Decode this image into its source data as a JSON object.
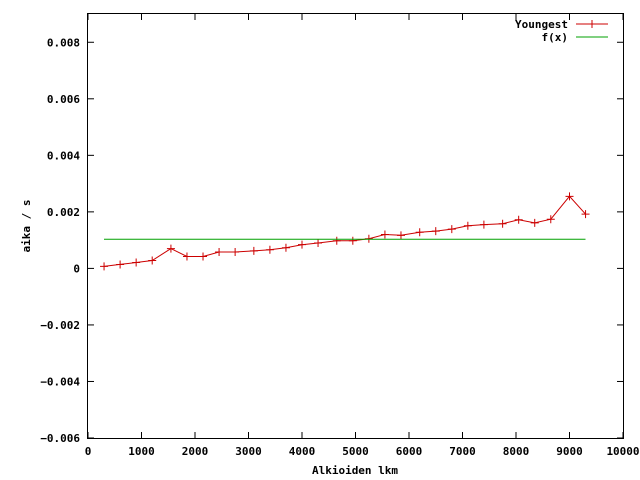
{
  "chart_data": {
    "type": "line",
    "xlabel": "Alkioiden lkm",
    "ylabel": "aika / s",
    "xlim": [
      0,
      10000
    ],
    "ylim": [
      -0.006,
      0.009
    ],
    "x_ticks": [
      {
        "value": 0,
        "label": "0"
      },
      {
        "value": 1000,
        "label": "1000"
      },
      {
        "value": 2000,
        "label": "2000"
      },
      {
        "value": 3000,
        "label": "3000"
      },
      {
        "value": 4000,
        "label": "4000"
      },
      {
        "value": 5000,
        "label": "5000"
      },
      {
        "value": 6000,
        "label": "6000"
      },
      {
        "value": 7000,
        "label": "7000"
      },
      {
        "value": 8000,
        "label": "8000"
      },
      {
        "value": 9000,
        "label": "9000"
      },
      {
        "value": 10000,
        "label": "10000"
      }
    ],
    "y_ticks": [
      {
        "value": -0.006,
        "label": "−0.006"
      },
      {
        "value": -0.004,
        "label": "−0.004"
      },
      {
        "value": -0.002,
        "label": "−0.002"
      },
      {
        "value": 0,
        "label": "0"
      },
      {
        "value": 0.002,
        "label": "0.002"
      },
      {
        "value": 0.004,
        "label": "0.004"
      },
      {
        "value": 0.006,
        "label": "0.006"
      },
      {
        "value": 0.008,
        "label": "0.008"
      }
    ],
    "grid": false,
    "legend": "top-right",
    "series": [
      {
        "name": "Youngest",
        "color": "#cc0000",
        "marker": "plus",
        "x": [
          300,
          600,
          900,
          1200,
          1550,
          1850,
          2150,
          2450,
          2750,
          3100,
          3400,
          3700,
          4000,
          4300,
          4650,
          4950,
          5250,
          5550,
          5850,
          6200,
          6500,
          6800,
          7100,
          7400,
          7750,
          8050,
          8350,
          8650,
          9000,
          9300
        ],
        "y": [
          7e-05,
          0.00014,
          0.00021,
          0.00028,
          0.0007,
          0.00042,
          0.00042,
          0.00058,
          0.00058,
          0.00062,
          0.00066,
          0.00073,
          0.00084,
          0.0009,
          0.00098,
          0.00098,
          0.00105,
          0.0012,
          0.00117,
          0.00128,
          0.00132,
          0.00139,
          0.00151,
          0.00155,
          0.00158,
          0.00172,
          0.00161,
          0.00174,
          0.00255,
          0.00192
        ]
      },
      {
        "name": "f(x)",
        "color": "#00a000",
        "marker": "none",
        "x": [
          300,
          9300
        ],
        "y": [
          0.00103,
          0.00103
        ]
      }
    ]
  }
}
